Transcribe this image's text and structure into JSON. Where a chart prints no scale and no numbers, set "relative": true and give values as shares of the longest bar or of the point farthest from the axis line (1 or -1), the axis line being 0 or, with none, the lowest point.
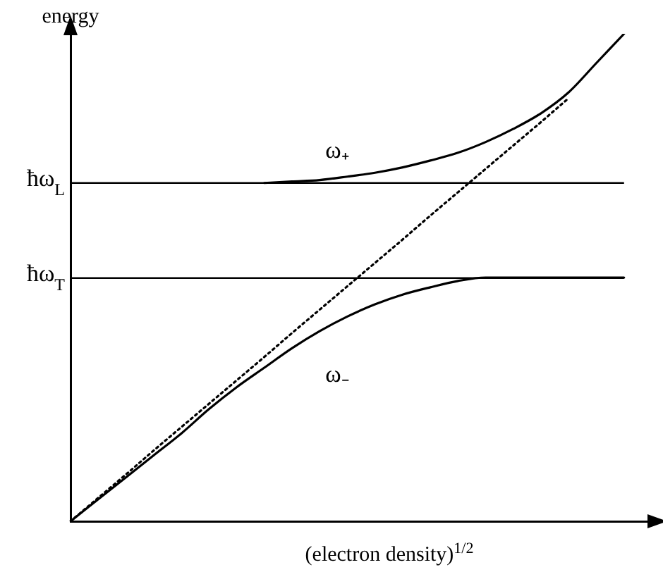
{
  "chart_data": {
    "type": "line",
    "relative": true,
    "xlabel": "(electron density)$^{1/2}$",
    "ylabel": "energy",
    "legend": false,
    "grid": false,
    "marker": "none",
    "categories": [
      null,
      null,
      null,
      null,
      null,
      null,
      null,
      null,
      null,
      null,
      null,
      null,
      null,
      null,
      null,
      null,
      null,
      null,
      null,
      null,
      null,
      null
    ],
    "series": [
      {
        "name": "ω₊",
        "color": "#000000",
        "line_style": "solid",
        "values": [
          null,
          null,
          null,
          null,
          null,
          null,
          null,
          0.694,
          0.697,
          0.7,
          0.707,
          0.715,
          0.726,
          0.74,
          0.756,
          0.778,
          0.805,
          0.837,
          0.88,
          0.94,
          1.0,
          null
        ]
      },
      {
        "name": "ω₋",
        "color": "#000000",
        "line_style": "solid",
        "values": [
          0,
          0.045,
          0.09,
          0.135,
          0.18,
          0.23,
          0.275,
          0.315,
          0.355,
          0.39,
          0.42,
          0.445,
          0.465,
          0.48,
          0.493,
          0.5,
          0.5,
          0.5,
          0.5,
          0.5,
          0.5,
          null
        ]
      },
      {
        "color": "#000000",
        "line_style": "dotted",
        "values": [
          0,
          0.048,
          0.096,
          0.145,
          0.193,
          0.241,
          0.289,
          0.337,
          0.386,
          0.434,
          0.482,
          0.53,
          0.578,
          0.627,
          0.675,
          0.723,
          0.771,
          0.819,
          0.868,
          null,
          null,
          null
        ]
      }
    ],
    "ref_lines": [
      {
        "axis": "y",
        "value": 0.694,
        "label": "ħω$_{L}$",
        "color": "#000000"
      },
      {
        "axis": "y",
        "value": 0.499,
        "label": "ħω$_{T}$",
        "color": "#000000"
      }
    ]
  }
}
